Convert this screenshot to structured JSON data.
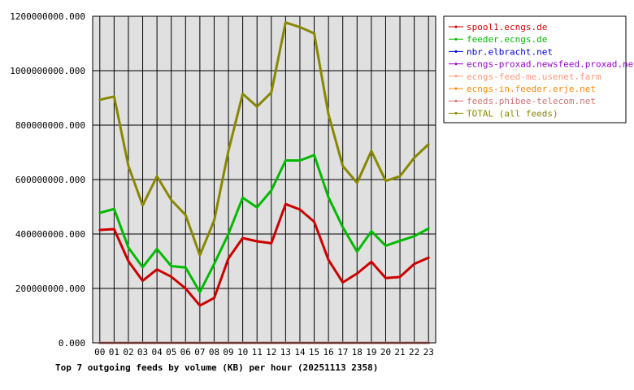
{
  "chart_data": {
    "type": "line",
    "title": "Top 7 outgoing feeds by volume (KB) per hour (20251113 2358)",
    "categories": [
      "00",
      "01",
      "02",
      "03",
      "04",
      "05",
      "06",
      "07",
      "08",
      "09",
      "10",
      "11",
      "12",
      "13",
      "14",
      "15",
      "16",
      "17",
      "18",
      "19",
      "20",
      "21",
      "22",
      "23"
    ],
    "ylim": [
      0,
      1200000000
    ],
    "yticks": [
      "0.000",
      "200000000.000",
      "400000000.000",
      "600000000.000",
      "800000000.000",
      "1000000000.000",
      "1200000000.000"
    ],
    "ytick_values": [
      0,
      200000000,
      400000000,
      600000000,
      800000000,
      1000000000,
      1200000000
    ],
    "grid": true,
    "legend_position": "right",
    "series": [
      {
        "name": "spool1.ecngs.de",
        "color": "#cc0000",
        "values": [
          415000000,
          418000000,
          300000000,
          228000000,
          270000000,
          243000000,
          200000000,
          137000000,
          165000000,
          310000000,
          385000000,
          373000000,
          366000000,
          510000000,
          490000000,
          445000000,
          305000000,
          222000000,
          255000000,
          298000000,
          238000000,
          242000000,
          290000000,
          313000000
        ]
      },
      {
        "name": "feeder.ecngs.de",
        "color": "#00bb00",
        "values": [
          478000000,
          492000000,
          350000000,
          278000000,
          345000000,
          282000000,
          277000000,
          187000000,
          290000000,
          400000000,
          533000000,
          498000000,
          560000000,
          670000000,
          670000000,
          690000000,
          535000000,
          425000000,
          335000000,
          410000000,
          357000000,
          375000000,
          392000000,
          420000000
        ]
      },
      {
        "name": "nbr.elbracht.net",
        "color": "#0000cc",
        "values": [
          0,
          0,
          0,
          0,
          0,
          0,
          0,
          0,
          0,
          0,
          0,
          0,
          0,
          0,
          0,
          0,
          0,
          0,
          0,
          0,
          0,
          0,
          0,
          0
        ]
      },
      {
        "name": "ecngs-proxad.newsfeed.proxad.net",
        "color": "#9900cc",
        "values": [
          0,
          0,
          0,
          0,
          0,
          0,
          0,
          0,
          0,
          0,
          0,
          0,
          0,
          0,
          0,
          0,
          0,
          0,
          0,
          0,
          0,
          0,
          0,
          0
        ]
      },
      {
        "name": "ecngs-feed-me.usenet.farm",
        "color": "#ff9977",
        "values": [
          0,
          0,
          0,
          0,
          0,
          0,
          0,
          0,
          0,
          0,
          0,
          0,
          0,
          0,
          0,
          0,
          0,
          0,
          0,
          0,
          0,
          0,
          0,
          0
        ]
      },
      {
        "name": "ecngs-in.feeder.erje.net",
        "color": "#ff8800",
        "values": [
          0,
          0,
          0,
          0,
          0,
          0,
          0,
          0,
          0,
          0,
          0,
          0,
          0,
          0,
          0,
          0,
          0,
          0,
          0,
          0,
          0,
          0,
          0,
          0
        ]
      },
      {
        "name": "feeds.phibee-telecom.net",
        "color": "#cc7777",
        "values": [
          0,
          0,
          0,
          0,
          0,
          0,
          0,
          0,
          0,
          0,
          0,
          0,
          0,
          0,
          0,
          0,
          0,
          0,
          0,
          0,
          0,
          0,
          0,
          0
        ]
      },
      {
        "name": "TOTAL (all feeds)",
        "color": "#888800",
        "values": [
          893000000,
          905000000,
          650000000,
          505000000,
          612000000,
          525000000,
          470000000,
          322000000,
          450000000,
          705000000,
          915000000,
          868000000,
          920000000,
          1177000000,
          1160000000,
          1137000000,
          840000000,
          650000000,
          588000000,
          705000000,
          595000000,
          612000000,
          680000000,
          730000000
        ]
      }
    ]
  }
}
